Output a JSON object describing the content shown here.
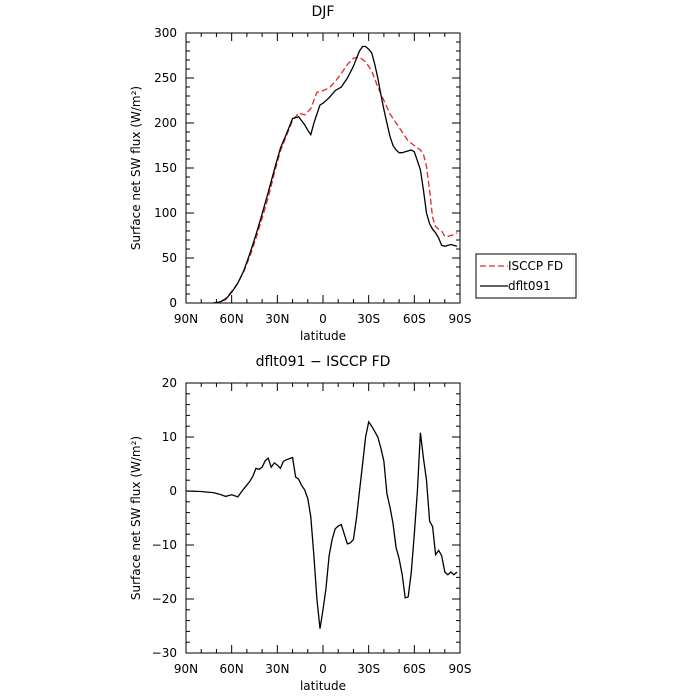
{
  "chart_data": [
    {
      "type": "line",
      "title": "DJF",
      "xlabel": "latitude",
      "ylabel": "Surface net SW flux (W/m²)",
      "xlim": [
        90,
        -90
      ],
      "ylim": [
        0,
        300
      ],
      "xticks": [
        {
          "value": 90,
          "label": "90N"
        },
        {
          "value": 60,
          "label": "60N"
        },
        {
          "value": 30,
          "label": "30N"
        },
        {
          "value": 0,
          "label": "0"
        },
        {
          "value": -30,
          "label": "30S"
        },
        {
          "value": -60,
          "label": "60S"
        },
        {
          "value": -90,
          "label": "90S"
        }
      ],
      "yticks": [
        0,
        50,
        100,
        150,
        200,
        250,
        300
      ],
      "series": [
        {
          "name": "ISCCP FD",
          "color": "#e8262a",
          "dash": true,
          "x": [
            72,
            68,
            64,
            60,
            56,
            52,
            48,
            44,
            40,
            36,
            32,
            28,
            24,
            20,
            16,
            12,
            8,
            4,
            0,
            -4,
            -8,
            -12,
            -16,
            -20,
            -24,
            -28,
            -32,
            -36,
            -40,
            -44,
            -48,
            -52,
            -56,
            -60,
            -64,
            -66,
            -68,
            -70,
            -72,
            -74,
            -76,
            -78,
            -80,
            -82,
            -84,
            -86,
            -88
          ],
          "y": [
            0,
            1,
            5,
            13,
            22,
            35,
            52,
            72,
            94,
            117,
            144,
            169,
            186,
            203,
            211,
            209,
            216,
            234,
            236,
            239,
            246,
            255,
            265,
            272,
            273,
            268,
            258,
            240,
            225,
            210,
            200,
            190,
            180,
            175,
            170,
            165,
            152,
            125,
            95,
            85,
            82,
            80,
            74,
            74,
            75,
            76,
            78
          ]
        },
        {
          "name": "dflt091",
          "color": "#000000",
          "dash": false,
          "x": [
            72,
            68,
            64,
            60,
            56,
            52,
            48,
            44,
            40,
            36,
            32,
            28,
            24,
            20,
            16,
            12,
            10,
            8,
            6,
            4,
            2,
            0,
            -4,
            -8,
            -12,
            -16,
            -20,
            -22,
            -24,
            -26,
            -28,
            -30,
            -32,
            -34,
            -36,
            -38,
            -40,
            -42,
            -44,
            -46,
            -48,
            -50,
            -52,
            -54,
            -56,
            -58,
            -60,
            -62,
            -64,
            -66,
            -68,
            -70,
            -72,
            -74,
            -76,
            -78,
            -80,
            -82,
            -84,
            -86,
            -88
          ],
          "y": [
            0,
            1,
            4,
            12,
            22,
            36,
            55,
            76,
            99,
            123,
            148,
            172,
            188,
            205,
            207,
            198,
            192,
            187,
            200,
            210,
            220,
            222,
            228,
            236,
            240,
            250,
            263,
            272,
            280,
            285,
            285,
            282,
            278,
            265,
            250,
            232,
            215,
            200,
            185,
            175,
            170,
            167,
            167,
            168,
            169,
            170,
            168,
            158,
            148,
            125,
            100,
            88,
            82,
            78,
            72,
            64,
            63,
            64,
            65,
            64,
            63
          ]
        }
      ],
      "legend": {
        "placement": "right-outside",
        "entries": [
          "ISCCP FD",
          "dflt091"
        ]
      }
    },
    {
      "type": "line",
      "title": "dflt091 − ISCCP FD",
      "xlabel": "latitude",
      "ylabel": "Surface net SW flux (W/m²)",
      "xlim": [
        90,
        -90
      ],
      "ylim": [
        -30,
        20
      ],
      "xticks": [
        {
          "value": 90,
          "label": "90N"
        },
        {
          "value": 60,
          "label": "60N"
        },
        {
          "value": 30,
          "label": "30N"
        },
        {
          "value": 0,
          "label": "0"
        },
        {
          "value": -30,
          "label": "30S"
        },
        {
          "value": -60,
          "label": "60S"
        },
        {
          "value": -90,
          "label": "90S"
        }
      ],
      "yticks": [
        -30,
        -20,
        -10,
        0,
        10,
        20
      ],
      "series": [
        {
          "color": "#000000",
          "dash": false,
          "x": [
            90,
            80,
            76,
            72,
            68,
            64,
            60,
            56,
            52,
            48,
            46,
            44,
            42,
            40,
            38,
            36,
            34,
            32,
            30,
            28,
            26,
            24,
            22,
            20,
            18,
            16,
            14,
            12,
            10,
            8,
            6,
            4,
            2,
            0,
            -2,
            -4,
            -6,
            -8,
            -10,
            -12,
            -14,
            -16,
            -18,
            -20,
            -22,
            -24,
            -26,
            -28,
            -30,
            -32,
            -34,
            -36,
            -38,
            -40,
            -42,
            -44,
            -46,
            -48,
            -50,
            -52,
            -54,
            -56,
            -58,
            -60,
            -62,
            -64,
            -66,
            -68,
            -70,
            -72,
            -74,
            -76,
            -78,
            -80,
            -82,
            -84,
            -86,
            -88
          ],
          "y": [
            0,
            -0.1,
            -0.2,
            -0.3,
            -0.6,
            -1.0,
            -0.7,
            -1.1,
            0.4,
            1.8,
            2.8,
            4.2,
            4.0,
            4.4,
            5.6,
            6.1,
            4.4,
            5.2,
            4.8,
            4.2,
            5.5,
            5.8,
            6.0,
            6.2,
            2.6,
            2.2,
            1.0,
            0.2,
            -1.4,
            -4.8,
            -12.0,
            -20.0,
            -25.5,
            -22.0,
            -18.0,
            -12.0,
            -9.0,
            -7.0,
            -6.5,
            -6.2,
            -8.0,
            -9.8,
            -9.6,
            -9.0,
            -5.0,
            0.0,
            5.0,
            10.0,
            12.8,
            12.0,
            11.0,
            10.0,
            8.0,
            5.5,
            -0.5,
            -3.0,
            -6.0,
            -10.5,
            -12.5,
            -15.5,
            -19.8,
            -19.6,
            -15.0,
            -8.0,
            0.0,
            10.8,
            6.0,
            2.0,
            -5.6,
            -6.6,
            -11.8,
            -11.0,
            -12.0,
            -15.0,
            -15.5,
            -15.0,
            -15.5,
            -15.0
          ]
        }
      ]
    }
  ]
}
